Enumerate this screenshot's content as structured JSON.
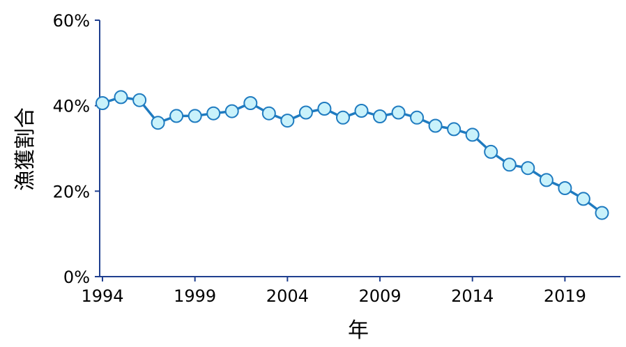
{
  "chart_data": {
    "type": "line",
    "title": "",
    "xlabel": "年",
    "ylabel": "漁獲割合",
    "x": [
      1994,
      1995,
      1996,
      1997,
      1998,
      1999,
      2000,
      2001,
      2002,
      2003,
      2004,
      2005,
      2006,
      2007,
      2008,
      2009,
      2010,
      2011,
      2012,
      2013,
      2014,
      2015,
      2016,
      2017,
      2018,
      2019,
      2020,
      2021
    ],
    "series": [
      {
        "values": [
          40.6,
          42.0,
          41.3,
          36.0,
          37.6,
          37.6,
          38.2,
          38.7,
          40.6,
          38.2,
          36.5,
          38.4,
          39.3,
          37.2,
          38.8,
          37.5,
          38.4,
          37.2,
          35.3,
          34.5,
          33.2,
          29.2,
          26.2,
          25.4,
          22.6,
          20.7,
          18.2,
          14.9
        ]
      }
    ],
    "xlim": [
      1993.85,
      2022.0
    ],
    "ylim": [
      0,
      60
    ],
    "ytick_values": [
      0,
      20,
      40,
      60
    ],
    "ytick_labels": [
      "0%",
      "20%",
      "40%",
      "60%"
    ],
    "xtick_values": [
      1994,
      1999,
      2004,
      2009,
      2014,
      2019
    ],
    "xtick_labels": [
      "1994",
      "1999",
      "2004",
      "2009",
      "2014",
      "2019"
    ],
    "grid": false,
    "legend": "none",
    "colors": {
      "line": "#1f7bc0",
      "marker_fill": "#c9f2fb",
      "marker_stroke": "#1f7bc0",
      "axis": "#1f3f8f"
    }
  }
}
